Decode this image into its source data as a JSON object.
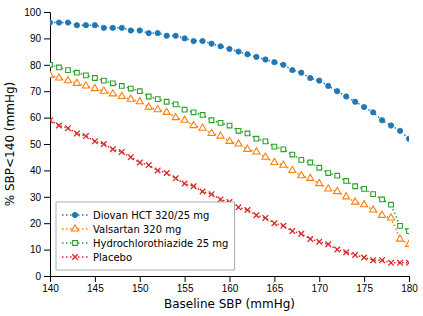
{
  "chart_data": {
    "type": "line",
    "xlabel": "Baseline SBP (mmHg)",
    "ylabel": "% SBP<140 (mmHg)",
    "x": [
      140,
      141,
      142,
      143,
      144,
      145,
      146,
      147,
      148,
      149,
      150,
      151,
      152,
      153,
      154,
      155,
      156,
      157,
      158,
      159,
      160,
      161,
      162,
      163,
      164,
      165,
      166,
      167,
      168,
      169,
      170,
      171,
      172,
      173,
      174,
      175,
      176,
      177,
      178,
      179,
      180
    ],
    "series": [
      {
        "name": "Diovan HCT 320/25 mg",
        "marker": "circle",
        "line_style": "dotted",
        "values": [
          96,
          96,
          96,
          95,
          95,
          95,
          94,
          94,
          94,
          93,
          93,
          92,
          92,
          91,
          91,
          90,
          89,
          89,
          88,
          87,
          86,
          85,
          84,
          83,
          82,
          81,
          80,
          78,
          77,
          75,
          74,
          72,
          70,
          68,
          66,
          64,
          62,
          59,
          57,
          55,
          52
        ]
      },
      {
        "name": "Valsartan 320 mg",
        "marker": "triangle-open",
        "line_style": "dotted",
        "values": [
          76,
          75,
          74,
          73,
          72,
          71,
          70,
          69,
          68,
          67,
          66,
          64,
          63,
          62,
          60,
          59,
          57,
          56,
          54,
          53,
          51,
          50,
          48,
          47,
          45,
          43,
          42,
          40,
          38,
          37,
          35,
          33,
          32,
          30,
          28,
          27,
          25,
          23,
          22,
          14,
          12
        ]
      },
      {
        "name": "Hydrochlorothiazide 25 mg",
        "marker": "square-open",
        "line_style": "dotted",
        "values": [
          80,
          79,
          78,
          77,
          76,
          75,
          74,
          73,
          72,
          71,
          70,
          68,
          67,
          66,
          65,
          63,
          62,
          61,
          59,
          58,
          57,
          55,
          54,
          52,
          51,
          49,
          48,
          46,
          44,
          43,
          41,
          39,
          38,
          36,
          34,
          33,
          31,
          29,
          27,
          19,
          17
        ]
      },
      {
        "name": "Placebo",
        "marker": "x",
        "line_style": "dotted",
        "values": [
          59,
          57,
          56,
          54,
          53,
          51,
          50,
          48,
          47,
          45,
          43,
          42,
          40,
          39,
          37,
          35,
          34,
          32,
          31,
          29,
          28,
          26,
          25,
          23,
          22,
          20,
          19,
          17,
          16,
          14,
          13,
          12,
          10,
          9,
          8,
          7,
          6,
          6,
          5,
          5,
          5
        ]
      }
    ],
    "xlim": [
      140,
      180
    ],
    "ylim": [
      0,
      100
    ],
    "xticks": [
      140,
      145,
      150,
      155,
      160,
      165,
      170,
      175,
      180
    ],
    "yticks": [
      0,
      10,
      20,
      30,
      40,
      50,
      60,
      70,
      80,
      90,
      100
    ],
    "legend": "lower left",
    "grid": false
  }
}
